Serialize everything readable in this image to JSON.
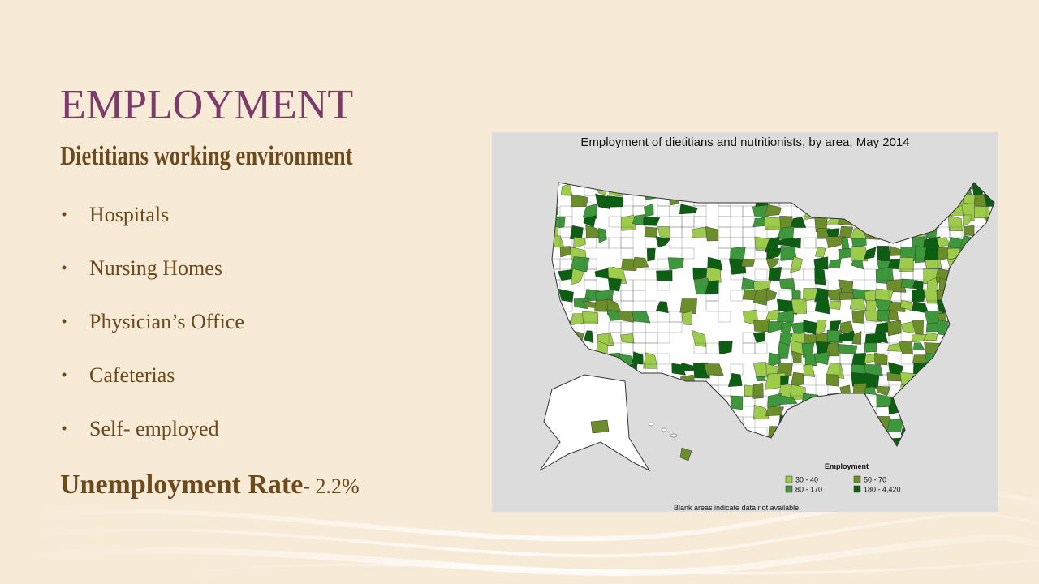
{
  "title": "EMPLOYMENT",
  "subtitle": "Dietitians working environment",
  "bullets": [
    "Hospitals",
    "Nursing Homes",
    "Physician’s Office",
    "Cafeterias",
    "Self- employed"
  ],
  "unemployment": {
    "label": "Unemployment Rate",
    "value": "- 2.2%"
  },
  "map": {
    "title": "Employment of dietitians and nutritionists, by area, May 2014",
    "legend_title": "Employment",
    "legend": [
      {
        "label": "30 - 40",
        "color": "#9ccc4a"
      },
      {
        "label": "50 - 70",
        "color": "#6b8e2b"
      },
      {
        "label": "80 - 170",
        "color": "#3c983a"
      },
      {
        "label": "180 - 4,420",
        "color": "#0b5e12"
      }
    ],
    "note": "Blank areas indicate data not available."
  }
}
